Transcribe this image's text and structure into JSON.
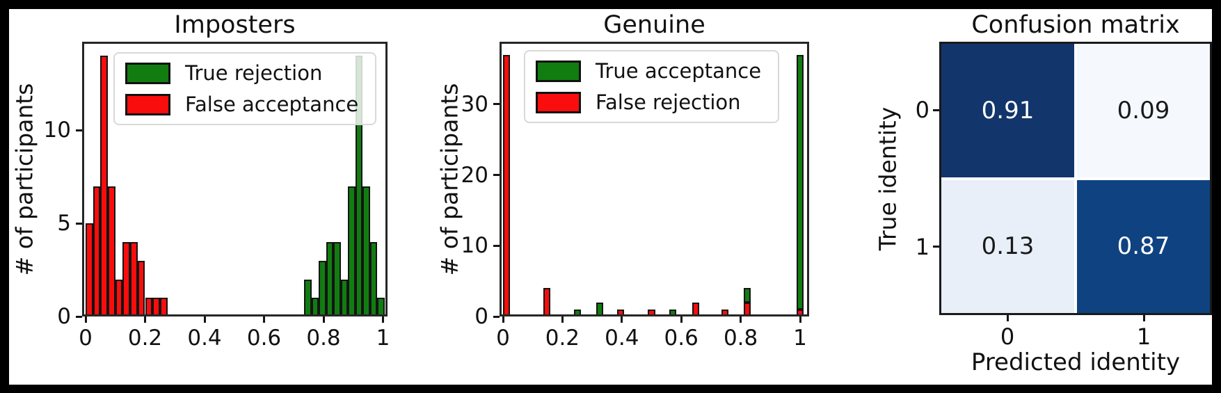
{
  "figure": {
    "background": "#ffffff",
    "frame_color": "#000000",
    "bar_red": "#f90d0d",
    "bar_green": "#117d11"
  },
  "chart_data": [
    {
      "type": "histogram",
      "title": "Imposters",
      "ylabel": "# of participants",
      "xticks": [
        0,
        0.2,
        0.4,
        0.6,
        0.8,
        1
      ],
      "yticks": [
        0,
        5,
        10
      ],
      "xlim": [
        -0.012,
        1.015
      ],
      "ylim": [
        0,
        14.75
      ],
      "legend": {
        "position": "upper left",
        "entries": [
          {
            "label": "True rejection",
            "color": "#117d11"
          },
          {
            "label": "False acceptance",
            "color": "#f90d0d"
          }
        ]
      },
      "series": [
        {
          "name": "False acceptance",
          "color": "#f90d0d",
          "bin_start": 0.0,
          "bin_width": 0.025,
          "counts": [
            5,
            7,
            14,
            7,
            2,
            4,
            4,
            3,
            1,
            1,
            1
          ]
        },
        {
          "name": "True rejection",
          "color": "#117d11",
          "bin_start": 0.735,
          "bin_width": 0.0245,
          "counts": [
            2,
            1,
            3,
            4,
            4,
            2,
            7,
            14,
            7,
            4,
            1
          ]
        }
      ]
    },
    {
      "type": "histogram",
      "title": "Genuine",
      "ylabel": "# of participants",
      "xticks": [
        0,
        0.2,
        0.4,
        0.6,
        0.8,
        1
      ],
      "yticks": [
        0,
        10,
        20,
        30
      ],
      "xlim": [
        -0.012,
        1.03
      ],
      "ylim": [
        0,
        38.8
      ],
      "legend": {
        "position": "upper center",
        "entries": [
          {
            "label": "True acceptance",
            "color": "#117d11"
          },
          {
            "label": "False rejection",
            "color": "#f90d0d"
          }
        ]
      },
      "bars": [
        {
          "center": 0.012,
          "width": 0.024,
          "segments": [
            {
              "color": "#f90d0d",
              "from": 0,
              "to": 37
            }
          ]
        },
        {
          "center": 0.148,
          "width": 0.024,
          "segments": [
            {
              "color": "#f90d0d",
              "from": 0,
              "to": 4
            }
          ]
        },
        {
          "center": 0.25,
          "width": 0.024,
          "segments": [
            {
              "color": "#117d11",
              "from": 0,
              "to": 1
            }
          ]
        },
        {
          "center": 0.325,
          "width": 0.024,
          "segments": [
            {
              "color": "#117d11",
              "from": 0,
              "to": 2
            }
          ]
        },
        {
          "center": 0.395,
          "width": 0.024,
          "segments": [
            {
              "color": "#f90d0d",
              "from": 0,
              "to": 1
            }
          ]
        },
        {
          "center": 0.5,
          "width": 0.024,
          "segments": [
            {
              "color": "#f90d0d",
              "from": 0,
              "to": 1
            }
          ]
        },
        {
          "center": 0.572,
          "width": 0.024,
          "segments": [
            {
              "color": "#117d11",
              "from": 0,
              "to": 1
            }
          ]
        },
        {
          "center": 0.648,
          "width": 0.024,
          "segments": [
            {
              "color": "#f90d0d",
              "from": 0,
              "to": 2
            }
          ]
        },
        {
          "center": 0.748,
          "width": 0.024,
          "segments": [
            {
              "color": "#f90d0d",
              "from": 0,
              "to": 1
            }
          ]
        },
        {
          "center": 0.822,
          "width": 0.024,
          "segments": [
            {
              "color": "#f90d0d",
              "from": 0,
              "to": 2
            },
            {
              "color": "#117d11",
              "from": 2,
              "to": 4
            }
          ]
        },
        {
          "center": 1.0,
          "width": 0.024,
          "segments": [
            {
              "color": "#f90d0d",
              "from": 0,
              "to": 1
            },
            {
              "color": "#117d11",
              "from": 1,
              "to": 37
            }
          ]
        }
      ]
    },
    {
      "type": "heatmap",
      "title": "Confusion matrix",
      "xlabel": "Predicted identity",
      "ylabel": "True identity",
      "xticklabels": [
        "0",
        "1"
      ],
      "yticklabels": [
        "0",
        "1"
      ],
      "values": [
        [
          0.91,
          0.09
        ],
        [
          0.13,
          0.87
        ]
      ],
      "cells": [
        [
          {
            "text": "0.91",
            "bg": "#12356b",
            "fg": "#ffffff"
          },
          {
            "text": "0.09",
            "bg": "#f5f9fd",
            "fg": "#1a1a1a"
          }
        ],
        [
          {
            "text": "0.13",
            "bg": "#e8eff8",
            "fg": "#1a1a1a"
          },
          {
            "text": "0.87",
            "bg": "#0f4280",
            "fg": "#ffffff"
          }
        ]
      ]
    }
  ]
}
